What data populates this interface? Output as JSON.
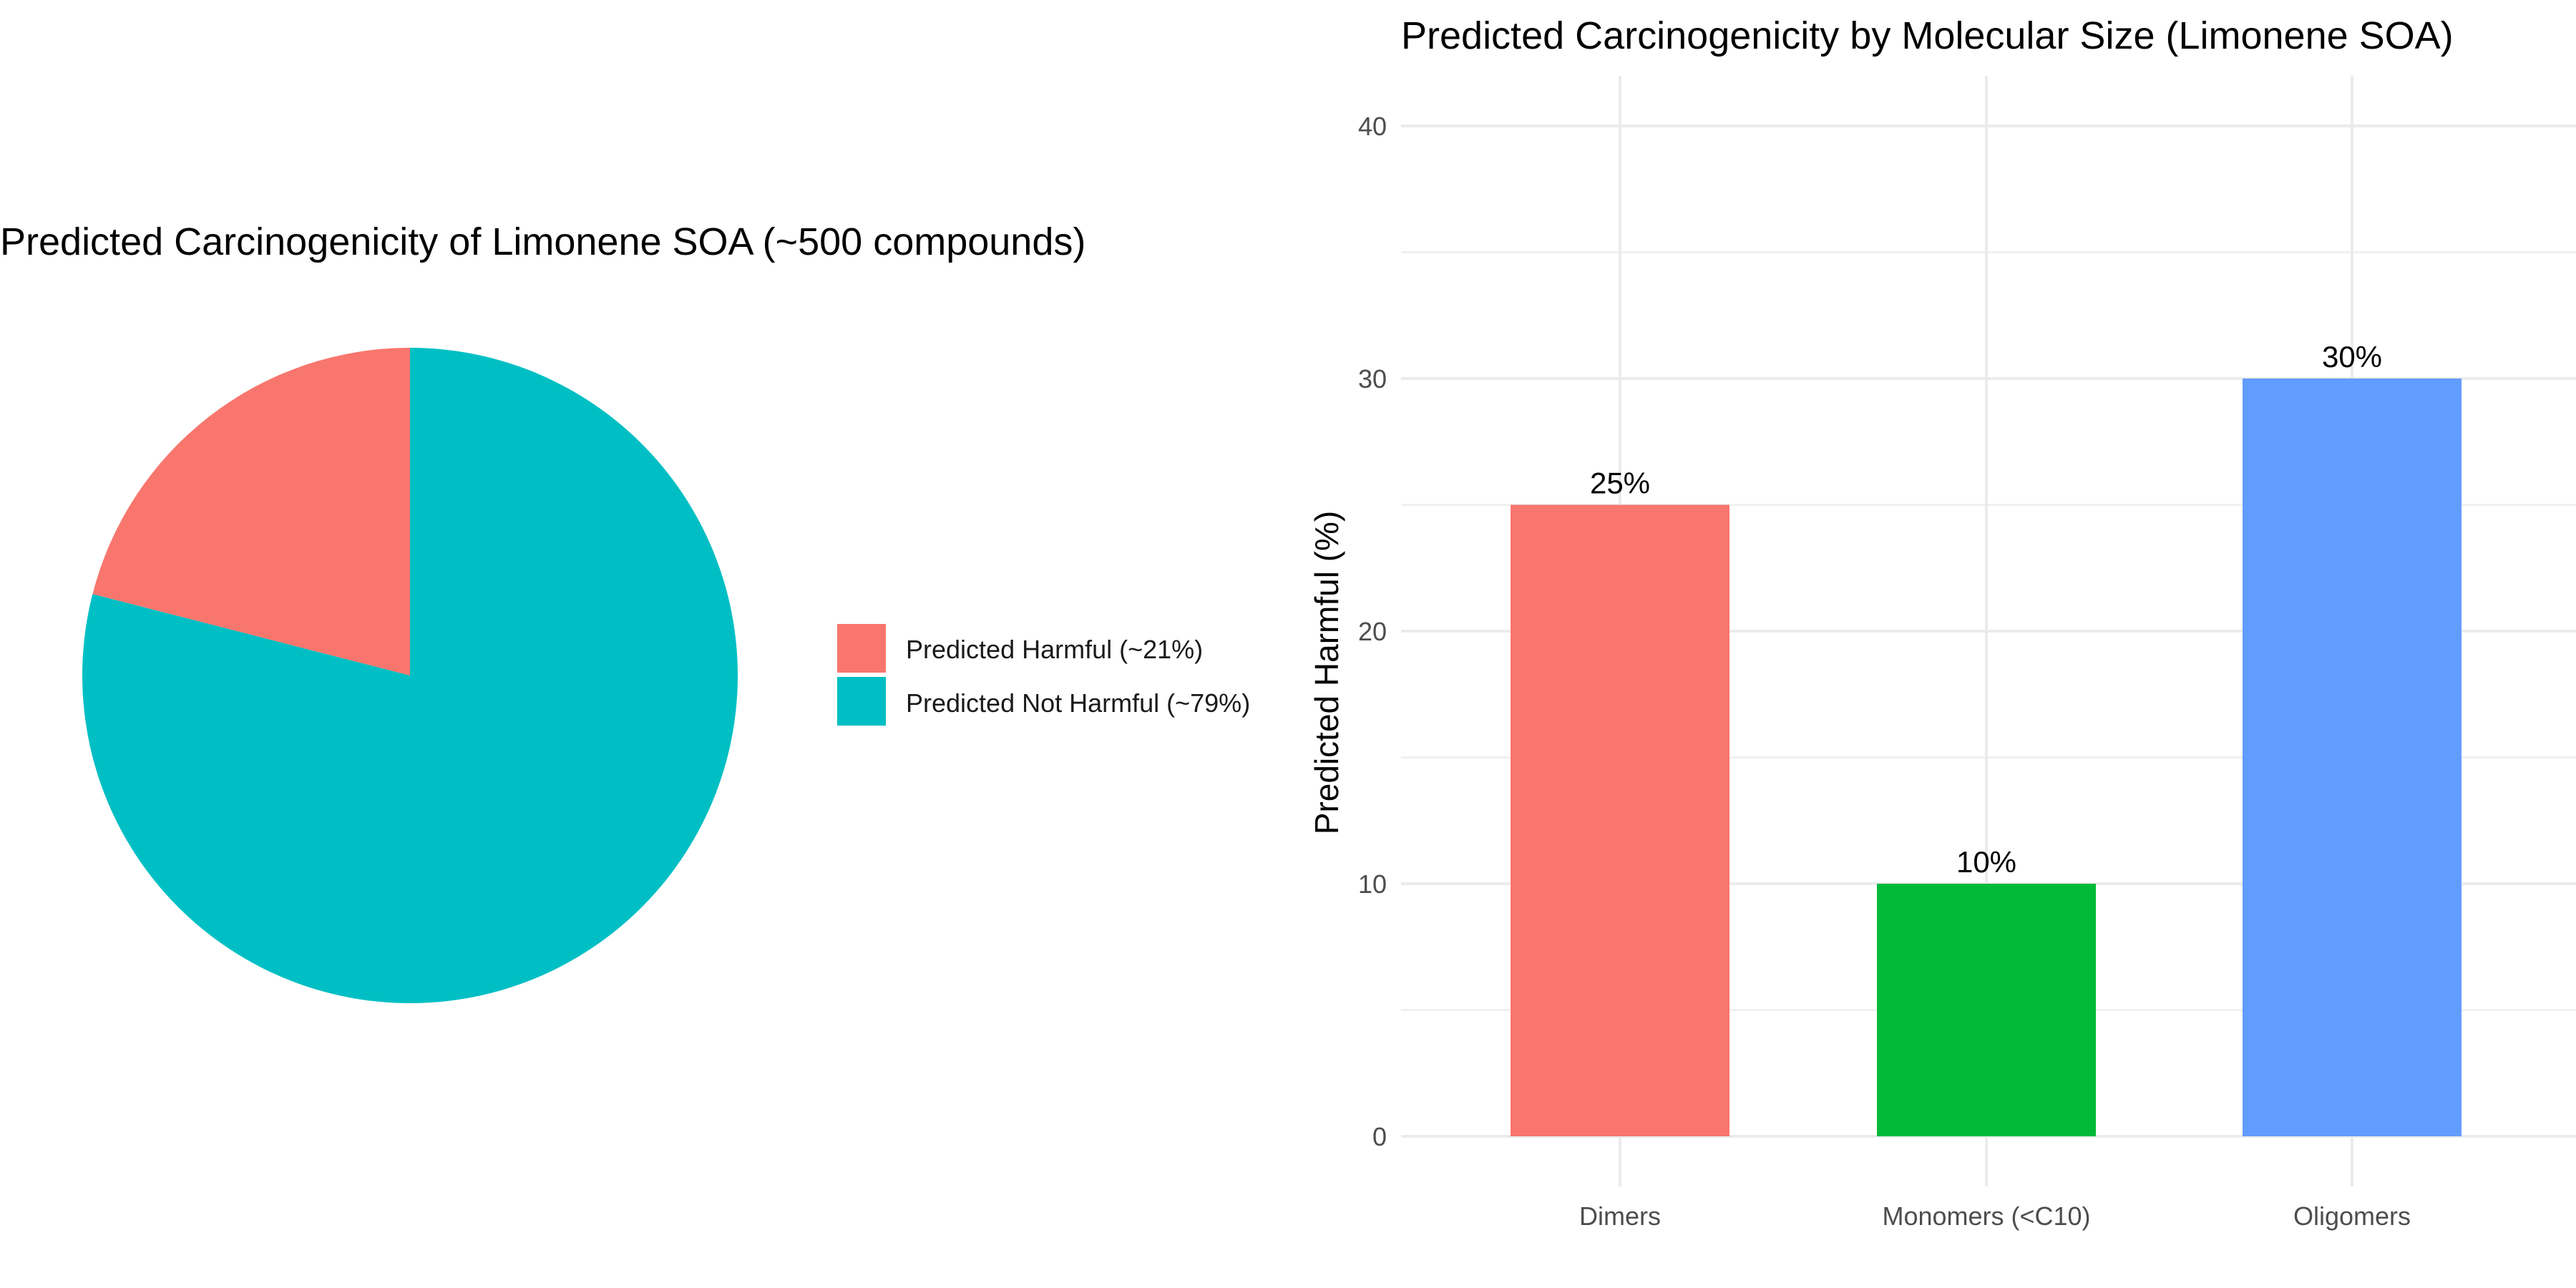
{
  "chart_data": [
    {
      "type": "pie",
      "title": "Predicted Carcinogenicity of Limonene SOA (~500 compounds)",
      "slices": [
        {
          "label": "Predicted Harmful (~21%)",
          "value": 21,
          "color": "#F8766D"
        },
        {
          "label": "Predicted Not Harmful (~79%)",
          "value": 79,
          "color": "#00BFC4"
        }
      ],
      "legend_position": "right"
    },
    {
      "type": "bar",
      "title": "Predicted Carcinogenicity by Molecular Size (Limonene SOA)",
      "categories": [
        "Dimers",
        "Monomers (<C10)",
        "Oligomers"
      ],
      "values": [
        25,
        10,
        30
      ],
      "data_labels": [
        "25%",
        "10%",
        "30%"
      ],
      "colors": [
        "#F8766D",
        "#00BA38",
        "#619CFF"
      ],
      "xlabel": "",
      "ylabel": "Predicted Harmful (%)",
      "ylim": [
        0,
        40
      ],
      "yticks": [
        0,
        10,
        20,
        30,
        40
      ],
      "grid": true
    }
  ]
}
